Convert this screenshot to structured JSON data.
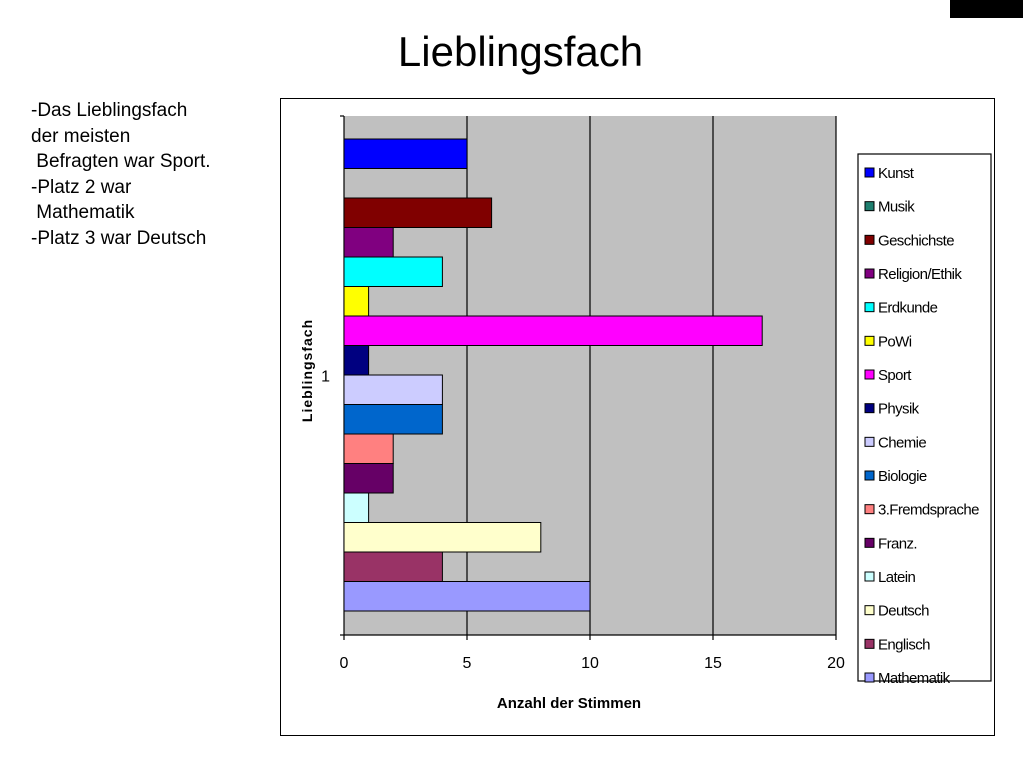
{
  "slide": {
    "title": "Lieblingsfach",
    "bullets": [
      "-Das Lieblingsfach",
      "der meisten",
      " Befragten war Sport.",
      "-Platz 2 war",
      " Mathematik",
      "-Platz 3 war Deutsch"
    ]
  },
  "chart_data": {
    "type": "bar",
    "orientation": "horizontal",
    "categories": [
      "1"
    ],
    "xlabel": "Anzahl der Stimmen",
    "ylabel": "Lieblingsfach",
    "xlim": [
      0,
      20
    ],
    "xticks": [
      0,
      5,
      10,
      15,
      20
    ],
    "grid": "vertical",
    "plot_background": "#c0c0c0",
    "legend": "right",
    "series": [
      {
        "name": "Kunst",
        "values": [
          5
        ],
        "color": "#0000ff"
      },
      {
        "name": "Musik",
        "values": [
          0
        ],
        "color": "#1f7f6f"
      },
      {
        "name": "Geschichste",
        "values": [
          6
        ],
        "color": "#800000"
      },
      {
        "name": "Religion/Ethik",
        "values": [
          2
        ],
        "color": "#800080"
      },
      {
        "name": "Erdkunde",
        "values": [
          4
        ],
        "color": "#00ffff"
      },
      {
        "name": "PoWi",
        "values": [
          1
        ],
        "color": "#ffff00"
      },
      {
        "name": "Sport",
        "values": [
          17
        ],
        "color": "#ff00ff"
      },
      {
        "name": "Physik",
        "values": [
          1
        ],
        "color": "#000080"
      },
      {
        "name": "Chemie",
        "values": [
          4
        ],
        "color": "#ccccff"
      },
      {
        "name": "Biologie",
        "values": [
          4
        ],
        "color": "#0066cc"
      },
      {
        "name": "3.Fremdsprache",
        "values": [
          2
        ],
        "color": "#ff8080"
      },
      {
        "name": "Franz.",
        "values": [
          2
        ],
        "color": "#660066"
      },
      {
        "name": "Latein",
        "values": [
          1
        ],
        "color": "#ccffff"
      },
      {
        "name": "Deutsch",
        "values": [
          8
        ],
        "color": "#ffffcc"
      },
      {
        "name": "Englisch",
        "values": [
          4
        ],
        "color": "#993366"
      },
      {
        "name": "Mathematik",
        "values": [
          10
        ],
        "color": "#9999ff"
      }
    ]
  }
}
